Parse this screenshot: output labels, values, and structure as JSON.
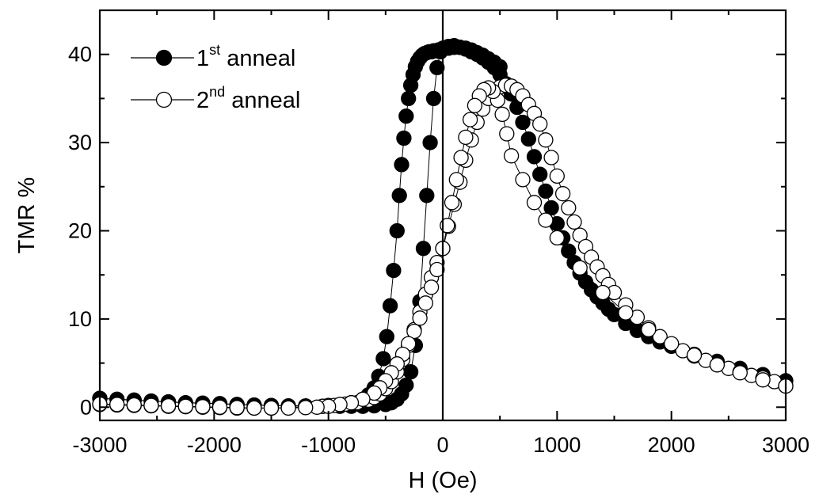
{
  "chart_data": {
    "type": "scatter",
    "xlabel": "H (Oe)",
    "ylabel": "TMR %",
    "xlim": [
      -3000,
      3000
    ],
    "ylim": [
      -1.5,
      45
    ],
    "x_ticks": [
      -3000,
      -2000,
      -1000,
      0,
      1000,
      2000,
      3000
    ],
    "x_tick_labels": [
      "-3000",
      "-2000",
      "-1000",
      "0",
      "1000",
      "2000",
      "3000"
    ],
    "y_ticks": [
      0,
      10,
      20,
      30,
      40
    ],
    "y_tick_labels": [
      "0",
      "10",
      "20",
      "30",
      "40"
    ],
    "x_minor_ticks": [
      -2500,
      -1500,
      -500,
      500,
      1500,
      2500
    ],
    "y_minor_ticks": [
      5,
      15,
      25,
      35
    ],
    "zero_line_x": 0,
    "grid": false,
    "legend_position": "top-left",
    "series": [
      {
        "name_base": "1",
        "name_sup": "st",
        "name_rest": " anneal",
        "marker": "filled-circle",
        "color": "#000000",
        "branches": [
          {
            "x": [
              -3000,
              -2850,
              -2700,
              -2550,
              -2400,
              -2250,
              -2100,
              -1950,
              -1800,
              -1650,
              -1500,
              -1350,
              -1200,
              -1050,
              -900,
              -800,
              -700,
              -600,
              -500,
              -450,
              -400,
              -360,
              -320,
              -280,
              -240,
              -200,
              -170,
              -140,
              -110,
              -80,
              -50,
              -20,
              0,
              50,
              100,
              150,
              200,
              250,
              300,
              350,
              400,
              450,
              500,
              550,
              600,
              650,
              700,
              750,
              800,
              850,
              900,
              950,
              1000,
              1050,
              1100,
              1150,
              1200,
              1250,
              1300,
              1350,
              1400,
              1450,
              1500,
              1600,
              1700,
              1800,
              1900,
              2000,
              2200,
              2400,
              2600,
              2800,
              3000
            ],
            "y": [
              1.0,
              0.9,
              0.8,
              0.7,
              0.6,
              0.5,
              0.45,
              0.4,
              0.3,
              0.25,
              0.2,
              0.15,
              0.1,
              0.1,
              0.1,
              0.1,
              0.1,
              0.15,
              0.3,
              0.5,
              0.9,
              1.5,
              2.5,
              4.0,
              7.0,
              12.0,
              18.0,
              24.0,
              30.0,
              35.0,
              38.5,
              40.3,
              40.7,
              40.9,
              41.0,
              40.8,
              40.6,
              40.3,
              40.0,
              39.6,
              39.1,
              38.5,
              37.7,
              36.7,
              35.5,
              34.0,
              32.3,
              30.4,
              28.4,
              26.4,
              24.5,
              22.6,
              20.8,
              19.2,
              17.7,
              16.4,
              15.2,
              14.2,
              13.3,
              12.5,
              11.8,
              11.1,
              10.5,
              9.5,
              8.7,
              8.0,
              7.4,
              6.9,
              6.0,
              5.2,
              4.4,
              3.7,
              3.0
            ]
          },
          {
            "x": [
              -3000,
              -2700,
              -2400,
              -2100,
              -1800,
              -1500,
              -1200,
              -1000,
              -900,
              -800,
              -700,
              -650,
              -600,
              -560,
              -520,
              -490,
              -460,
              -430,
              -400,
              -380,
              -360,
              -340,
              -320,
              -300,
              -280,
              -260,
              -240,
              -220,
              -200,
              -180,
              -160,
              -140,
              -120,
              -100,
              -80,
              -60,
              -40,
              -20,
              0,
              50,
              100,
              150,
              200,
              250,
              300,
              350,
              400,
              450,
              500
            ],
            "y": [
              1.0,
              0.8,
              0.6,
              0.45,
              0.3,
              0.2,
              0.15,
              0.2,
              0.3,
              0.5,
              0.9,
              1.4,
              2.2,
              3.5,
              5.5,
              8.0,
              11.5,
              15.5,
              20.0,
              24.0,
              27.5,
              30.5,
              33.0,
              35.0,
              36.5,
              37.7,
              38.6,
              39.2,
              39.6,
              39.9,
              40.1,
              40.2,
              40.3,
              40.3,
              40.4,
              40.4,
              40.5,
              40.5,
              40.6,
              40.7,
              40.8,
              40.8,
              40.7,
              40.5,
              40.2,
              39.9,
              39.5,
              39.1,
              38.6
            ]
          }
        ]
      },
      {
        "name_base": "2",
        "name_sup": "nd",
        "name_rest": " anneal",
        "marker": "open-circle",
        "color": "#000000",
        "branches": [
          {
            "x": [
              -3000,
              -2850,
              -2700,
              -2550,
              -2400,
              -2250,
              -2100,
              -1950,
              -1800,
              -1650,
              -1500,
              -1350,
              -1200,
              -1050,
              -950,
              -850,
              -750,
              -650,
              -600,
              -550,
              -500,
              -450,
              -400,
              -350,
              -300,
              -250,
              -200,
              -150,
              -100,
              -50,
              0,
              50,
              100,
              150,
              200,
              250,
              300,
              350,
              400,
              450,
              500,
              550,
              600,
              650,
              700,
              750,
              800,
              850,
              900,
              950,
              1000,
              1050,
              1100,
              1150,
              1200,
              1250,
              1300,
              1350,
              1400,
              1450,
              1500,
              1600,
              1700,
              1800,
              1900,
              2000,
              2100,
              2200,
              2300,
              2400,
              2500,
              2600,
              2700,
              2800,
              2900,
              3000
            ],
            "y": [
              0.3,
              0.25,
              0.2,
              0.15,
              0.1,
              0.05,
              0,
              -0.05,
              -0.1,
              -0.1,
              -0.1,
              -0.05,
              0,
              0.1,
              0.2,
              0.35,
              0.5,
              0.8,
              1.1,
              1.5,
              2.1,
              2.9,
              4.0,
              5.4,
              7.0,
              8.8,
              10.8,
              12.8,
              14.7,
              16.4,
              18.0,
              20.5,
              23.0,
              25.5,
              28.0,
              30.3,
              32.3,
              33.8,
              35.0,
              35.8,
              36.3,
              36.5,
              36.4,
              36.0,
              35.3,
              34.3,
              33.3,
              32.1,
              30.3,
              28.3,
              26.2,
              24.2,
              22.6,
              21.0,
              19.5,
              18.2,
              17.0,
              15.9,
              14.9,
              13.9,
              13.0,
              11.6,
              10.2,
              9.0,
              8.0,
              7.1,
              6.4,
              5.8,
              5.3,
              4.8,
              4.4,
              4.0,
              3.6,
              3.3,
              2.9,
              2.4
            ]
          },
          {
            "x": [
              3000,
              2800,
              2600,
              2400,
              2200,
              2000,
              1800,
              1600,
              1400,
              1200,
              1000,
              900,
              800,
              700,
              600,
              560,
              520,
              480,
              440,
              400,
              360,
              320,
              280,
              240,
              200,
              160,
              120,
              80,
              40,
              0,
              -50,
              -100,
              -150,
              -200,
              -250,
              -300,
              -350,
              -400,
              -450,
              -500,
              -550,
              -600,
              -700,
              -800,
              -900,
              -1000,
              -1100,
              -1200,
              -1350,
              -1500,
              -1650,
              -1800,
              -1950,
              -2100,
              -2250,
              -2400,
              -2550,
              -2700,
              -2850,
              -3000
            ],
            "y": [
              2.4,
              3.1,
              3.9,
              4.8,
              5.9,
              7.2,
              8.8,
              10.7,
              13.0,
              15.8,
              19.2,
              21.2,
              23.2,
              25.8,
              28.5,
              31.0,
              33.2,
              34.8,
              35.8,
              36.2,
              36.0,
              35.3,
              34.2,
              32.6,
              30.6,
              28.3,
              25.8,
              23.2,
              20.6,
              18.0,
              15.6,
              13.6,
              11.8,
              10.1,
              8.6,
              7.2,
              6.0,
              4.9,
              3.9,
              3.0,
              2.2,
              1.6,
              0.9,
              0.5,
              0.3,
              0.1,
              0,
              -0.05,
              -0.1,
              -0.1,
              -0.1,
              -0.05,
              0,
              0.05,
              0.1,
              0.15,
              0.2,
              0.25,
              0.3,
              0.35
            ]
          }
        ]
      }
    ]
  }
}
